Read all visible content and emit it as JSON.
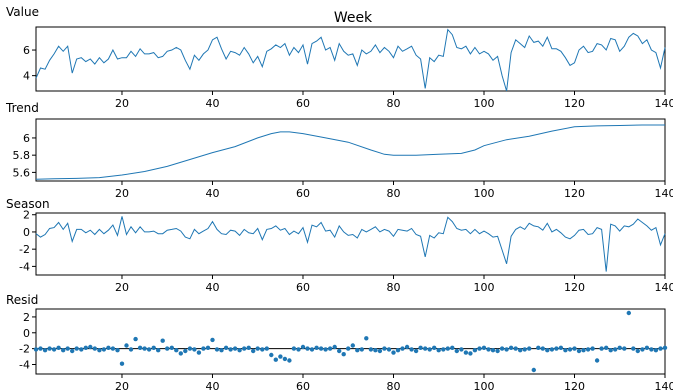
{
  "figure": {
    "title": "Week"
  },
  "colors": {
    "series": "#1f77b4",
    "axis": "#000000"
  },
  "chart_data": [
    {
      "name": "value",
      "type": "line",
      "title": "Value",
      "xlim": [
        1,
        140
      ],
      "ylim": [
        2.8,
        7.8
      ],
      "x_ticks": [
        20,
        40,
        60,
        80,
        100,
        120,
        140
      ],
      "y_ticks": [
        4,
        6
      ],
      "x": [
        1,
        2,
        3,
        4,
        5,
        6,
        7,
        8,
        9,
        10,
        11,
        12,
        13,
        14,
        15,
        16,
        17,
        18,
        19,
        20,
        21,
        22,
        23,
        24,
        25,
        26,
        27,
        28,
        29,
        30,
        31,
        32,
        33,
        34,
        35,
        36,
        37,
        38,
        39,
        40,
        41,
        42,
        43,
        44,
        45,
        46,
        47,
        48,
        49,
        50,
        51,
        52,
        53,
        54,
        55,
        56,
        57,
        58,
        59,
        60,
        61,
        62,
        63,
        64,
        65,
        66,
        67,
        68,
        69,
        70,
        71,
        72,
        73,
        74,
        75,
        76,
        77,
        78,
        79,
        80,
        81,
        82,
        83,
        84,
        85,
        86,
        87,
        88,
        89,
        90,
        91,
        92,
        93,
        94,
        95,
        96,
        97,
        98,
        99,
        100,
        101,
        102,
        103,
        104,
        105,
        106,
        107,
        108,
        109,
        110,
        111,
        112,
        113,
        114,
        115,
        116,
        117,
        118,
        119,
        120,
        121,
        122,
        123,
        124,
        125,
        126,
        127,
        128,
        129,
        130,
        131,
        132,
        133,
        134,
        135,
        136,
        137,
        138,
        139,
        140
      ],
      "y": [
        3.8,
        4.6,
        4.5,
        5.2,
        5.7,
        6.3,
        5.9,
        6.3,
        4.2,
        5.3,
        5.4,
        5.1,
        5.3,
        4.9,
        5.4,
        5.0,
        5.3,
        6.0,
        5.3,
        5.4,
        5.4,
        5.9,
        5.5,
        6.1,
        5.7,
        5.7,
        5.8,
        5.4,
        5.5,
        5.9,
        6.0,
        6.2,
        6.0,
        5.2,
        4.5,
        5.6,
        5.2,
        5.7,
        6.0,
        6.8,
        7.0,
        6.1,
        5.3,
        5.9,
        5.8,
        5.6,
        6.2,
        5.7,
        5.0,
        5.5,
        4.7,
        5.9,
        6.1,
        6.4,
        6.2,
        6.5,
        5.6,
        6.2,
        5.8,
        6.4,
        4.9,
        6.5,
        6.7,
        7.0,
        6.0,
        6.2,
        5.2,
        6.5,
        5.9,
        5.6,
        5.7,
        4.8,
        6.0,
        5.7,
        5.9,
        6.4,
        5.8,
        6.2,
        5.9,
        5.4,
        6.3,
        5.9,
        6.1,
        6.3,
        5.6,
        5.3,
        3.0,
        5.4,
        5.1,
        5.6,
        5.5,
        7.6,
        7.2,
        6.2,
        6.1,
        6.3,
        5.7,
        6.2,
        5.7,
        5.9,
        5.7,
        5.2,
        5.5,
        4.0,
        2.8,
        5.8,
        6.8,
        6.5,
        6.2,
        7.1,
        6.6,
        6.7,
        6.3,
        7.0,
        6.1,
        6.1,
        5.9,
        5.4,
        4.8,
        5.0,
        6.0,
        6.3,
        5.8,
        5.9,
        6.5,
        6.4,
        6.0,
        6.9,
        6.8,
        5.9,
        6.3,
        7.0,
        7.3,
        7.1,
        6.5,
        6.8,
        6.0,
        5.8,
        4.6,
        6.2
      ]
    },
    {
      "name": "trend",
      "type": "line",
      "title": "Trend",
      "xlim": [
        1,
        140
      ],
      "ylim": [
        5.5,
        6.22
      ],
      "x_ticks": [
        20,
        40,
        60,
        80,
        100,
        120,
        140
      ],
      "y_ticks": [
        5.6,
        5.8,
        6.0
      ],
      "x": [
        1,
        5,
        10,
        15,
        20,
        25,
        30,
        35,
        40,
        45,
        50,
        53,
        55,
        57,
        60,
        65,
        70,
        75,
        78,
        80,
        85,
        90,
        95,
        98,
        100,
        105,
        110,
        115,
        120,
        125,
        130,
        135,
        140
      ],
      "y": [
        5.52,
        5.525,
        5.53,
        5.54,
        5.57,
        5.61,
        5.67,
        5.75,
        5.83,
        5.9,
        6.0,
        6.05,
        6.07,
        6.07,
        6.05,
        6.0,
        5.95,
        5.86,
        5.81,
        5.8,
        5.8,
        5.81,
        5.82,
        5.86,
        5.91,
        5.98,
        6.02,
        6.08,
        6.13,
        6.14,
        6.145,
        6.15,
        6.15
      ]
    },
    {
      "name": "season",
      "type": "line",
      "title": "Season",
      "xlim": [
        1,
        140
      ],
      "ylim": [
        -5.0,
        2.2
      ],
      "x_ticks": [
        20,
        40,
        60,
        80,
        100,
        120,
        140
      ],
      "y_ticks": [
        -4,
        -2,
        0,
        2
      ],
      "x": [
        1,
        2,
        3,
        4,
        5,
        6,
        7,
        8,
        9,
        10,
        11,
        12,
        13,
        14,
        15,
        16,
        17,
        18,
        19,
        20,
        21,
        22,
        23,
        24,
        25,
        26,
        27,
        28,
        29,
        30,
        31,
        32,
        33,
        34,
        35,
        36,
        37,
        38,
        39,
        40,
        41,
        42,
        43,
        44,
        45,
        46,
        47,
        48,
        49,
        50,
        51,
        52,
        53,
        54,
        55,
        56,
        57,
        58,
        59,
        60,
        61,
        62,
        63,
        64,
        65,
        66,
        67,
        68,
        69,
        70,
        71,
        72,
        73,
        74,
        75,
        76,
        77,
        78,
        79,
        80,
        81,
        82,
        83,
        84,
        85,
        86,
        87,
        88,
        89,
        90,
        91,
        92,
        93,
        94,
        95,
        96,
        97,
        98,
        99,
        100,
        101,
        102,
        103,
        104,
        105,
        106,
        107,
        108,
        109,
        110,
        111,
        112,
        113,
        114,
        115,
        116,
        117,
        118,
        119,
        120,
        121,
        122,
        123,
        124,
        125,
        126,
        127,
        128,
        129,
        130,
        131,
        132,
        133,
        134,
        135,
        136,
        137,
        138,
        139,
        140
      ],
      "y": [
        -0.2,
        -0.6,
        -0.3,
        0.4,
        0.5,
        1.1,
        0.3,
        1.0,
        -1.1,
        0.3,
        0.3,
        -0.1,
        0.2,
        -0.3,
        0.3,
        -0.2,
        0.2,
        0.8,
        -0.4,
        1.8,
        -0.3,
        0.6,
        -0.1,
        0.6,
        0.0,
        0.0,
        0.1,
        -0.2,
        -0.2,
        0.2,
        0.3,
        0.4,
        0.1,
        -0.6,
        -0.8,
        0.3,
        -0.2,
        0.1,
        0.4,
        1.2,
        0.3,
        -0.2,
        -0.3,
        0.2,
        0.1,
        -0.4,
        0.3,
        -0.1,
        -0.2,
        0.4,
        -0.9,
        0.3,
        0.4,
        0.7,
        0.2,
        0.4,
        -0.3,
        0.1,
        -0.2,
        0.5,
        -1.2,
        0.8,
        0.6,
        1.1,
        0.1,
        0.2,
        -0.6,
        0.7,
        0.0,
        -0.4,
        -0.3,
        -0.7,
        0.3,
        0.0,
        0.3,
        0.6,
        0.0,
        0.3,
        0.1,
        -0.5,
        0.3,
        0.2,
        0.1,
        0.4,
        -0.3,
        -0.5,
        -2.9,
        -0.4,
        -0.7,
        -0.1,
        -0.2,
        1.7,
        1.2,
        0.4,
        0.2,
        0.3,
        -0.2,
        0.3,
        -0.2,
        0.1,
        -0.2,
        -0.6,
        -0.5,
        -2.1,
        -3.7,
        -0.5,
        0.3,
        0.6,
        0.3,
        1.0,
        0.7,
        0.6,
        0.2,
        1.0,
        0.0,
        0.3,
        -0.1,
        -0.6,
        -0.8,
        -0.4,
        0.2,
        0.3,
        -0.3,
        -0.2,
        0.5,
        0.3,
        -4.6,
        0.9,
        0.7,
        0.1,
        0.7,
        0.6,
        0.9,
        1.5,
        1.1,
        0.7,
        0.2,
        0.5,
        -1.5,
        -0.2
      ]
    },
    {
      "name": "resid",
      "type": "scatter",
      "title": "Resid",
      "xlim": [
        1,
        140
      ],
      "ylim": [
        -5.2,
        3.0
      ],
      "x_ticks": [
        20,
        40,
        60,
        80,
        100,
        120,
        140
      ],
      "y_ticks": [
        -4,
        -2,
        0,
        2
      ],
      "baseline": -2,
      "x": [
        1,
        2,
        3,
        4,
        5,
        6,
        7,
        8,
        9,
        10,
        11,
        12,
        13,
        14,
        15,
        16,
        17,
        18,
        19,
        20,
        21,
        22,
        23,
        24,
        25,
        26,
        27,
        28,
        29,
        30,
        31,
        32,
        33,
        34,
        35,
        36,
        37,
        38,
        39,
        40,
        41,
        42,
        43,
        44,
        45,
        46,
        47,
        48,
        49,
        50,
        51,
        52,
        53,
        54,
        55,
        56,
        57,
        58,
        59,
        60,
        61,
        62,
        63,
        64,
        65,
        66,
        67,
        68,
        69,
        70,
        71,
        72,
        73,
        74,
        75,
        76,
        77,
        78,
        79,
        80,
        81,
        82,
        83,
        84,
        85,
        86,
        87,
        88,
        89,
        90,
        91,
        92,
        93,
        94,
        95,
        96,
        97,
        98,
        99,
        100,
        101,
        102,
        103,
        104,
        105,
        106,
        107,
        108,
        109,
        110,
        111,
        112,
        113,
        114,
        115,
        116,
        117,
        118,
        119,
        120,
        121,
        122,
        123,
        124,
        125,
        126,
        127,
        128,
        129,
        130,
        131,
        132,
        133,
        134,
        135,
        136,
        137,
        138,
        139,
        140
      ],
      "y": [
        -2.1,
        -2.0,
        -2.2,
        -2.0,
        -2.1,
        -1.9,
        -2.2,
        -2.0,
        -2.3,
        -2.0,
        -2.1,
        -1.9,
        -1.8,
        -2.0,
        -2.2,
        -2.1,
        -1.9,
        -2.0,
        -2.2,
        -3.9,
        -1.6,
        -2.1,
        -0.8,
        -1.9,
        -2.0,
        -2.1,
        -1.9,
        -2.2,
        -1.0,
        -2.0,
        -1.9,
        -2.2,
        -2.6,
        -2.3,
        -2.0,
        -2.1,
        -2.5,
        -2.0,
        -1.9,
        -0.9,
        -2.1,
        -2.2,
        -1.9,
        -2.1,
        -2.0,
        -2.2,
        -2.0,
        -1.9,
        -2.3,
        -2.0,
        -2.1,
        -2.0,
        -2.8,
        -3.4,
        -3.0,
        -3.3,
        -3.5,
        -2.0,
        -2.1,
        -1.8,
        -2.0,
        -2.1,
        -1.9,
        -2.0,
        -2.1,
        -2.0,
        -1.8,
        -2.3,
        -2.7,
        -2.0,
        -1.6,
        -2.2,
        -2.1,
        -0.7,
        -2.1,
        -2.2,
        -2.3,
        -2.0,
        -2.1,
        -2.5,
        -2.2,
        -2.0,
        -1.8,
        -2.1,
        -2.3,
        -1.9,
        -2.0,
        -2.1,
        -1.9,
        -2.2,
        -2.1,
        -2.0,
        -1.9,
        -2.3,
        -2.1,
        -2.5,
        -2.6,
        -2.2,
        -2.0,
        -1.9,
        -2.1,
        -2.2,
        -2.3,
        -2.0,
        -2.1,
        -1.9,
        -2.0,
        -2.2,
        -2.1,
        -2.0,
        -4.7,
        -1.9,
        -2.0,
        -2.2,
        -2.1,
        -2.0,
        -1.9,
        -2.2,
        -2.1,
        -2.0,
        -2.3,
        -2.2,
        -2.1,
        -2.0,
        -3.5,
        -2.0,
        -1.9,
        -2.2,
        -2.1,
        -1.9,
        -2.0,
        2.5,
        -2.0,
        -2.3,
        -2.1,
        -1.9,
        -2.1,
        -2.2,
        -2.0,
        -1.9
      ]
    }
  ]
}
